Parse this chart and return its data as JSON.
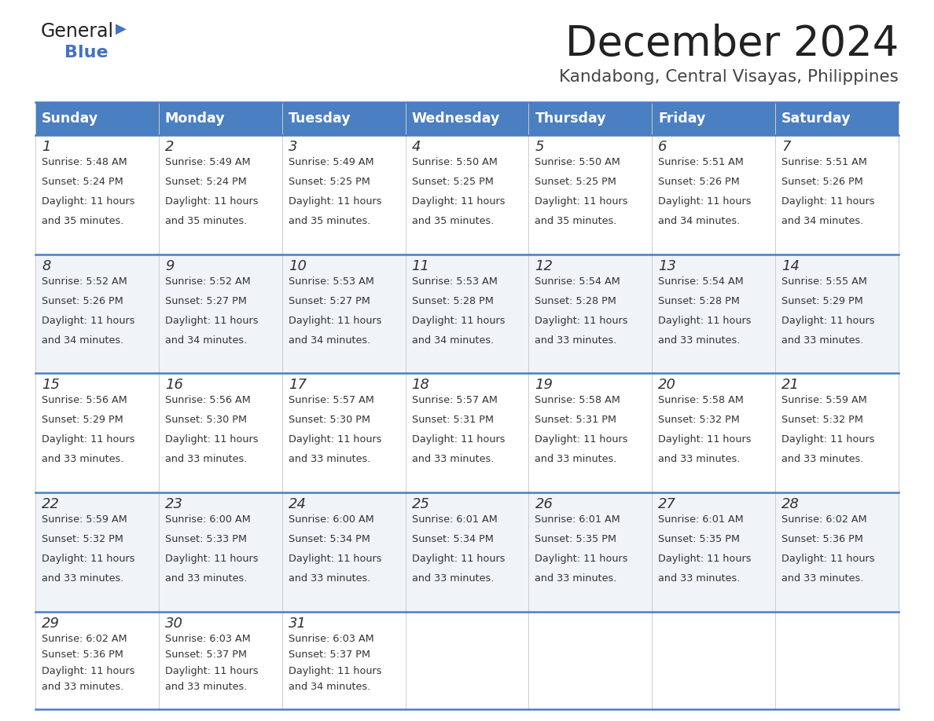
{
  "title": "December 2024",
  "subtitle": "Kandabong, Central Visayas, Philippines",
  "days_of_week": [
    "Sunday",
    "Monday",
    "Tuesday",
    "Wednesday",
    "Thursday",
    "Friday",
    "Saturday"
  ],
  "header_bg": "#4a7fc1",
  "header_text": "#FFFFFF",
  "cell_bg_odd": "#FFFFFF",
  "cell_bg_even": "#F0F4F8",
  "divider_color": "#4a7fc1",
  "text_color": "#333333",
  "logo_general_color": "#222222",
  "logo_blue_color": "#4472C4",
  "title_color": "#222222",
  "subtitle_color": "#444444",
  "days": [
    {
      "date": 1,
      "col": 0,
      "row": 0,
      "sunrise": "5:48 AM",
      "sunset": "5:24 PM",
      "daylight": "11 hours",
      "daylight2": "and 35 minutes."
    },
    {
      "date": 2,
      "col": 1,
      "row": 0,
      "sunrise": "5:49 AM",
      "sunset": "5:24 PM",
      "daylight": "11 hours",
      "daylight2": "and 35 minutes."
    },
    {
      "date": 3,
      "col": 2,
      "row": 0,
      "sunrise": "5:49 AM",
      "sunset": "5:25 PM",
      "daylight": "11 hours",
      "daylight2": "and 35 minutes."
    },
    {
      "date": 4,
      "col": 3,
      "row": 0,
      "sunrise": "5:50 AM",
      "sunset": "5:25 PM",
      "daylight": "11 hours",
      "daylight2": "and 35 minutes."
    },
    {
      "date": 5,
      "col": 4,
      "row": 0,
      "sunrise": "5:50 AM",
      "sunset": "5:25 PM",
      "daylight": "11 hours",
      "daylight2": "and 35 minutes."
    },
    {
      "date": 6,
      "col": 5,
      "row": 0,
      "sunrise": "5:51 AM",
      "sunset": "5:26 PM",
      "daylight": "11 hours",
      "daylight2": "and 34 minutes."
    },
    {
      "date": 7,
      "col": 6,
      "row": 0,
      "sunrise": "5:51 AM",
      "sunset": "5:26 PM",
      "daylight": "11 hours",
      "daylight2": "and 34 minutes."
    },
    {
      "date": 8,
      "col": 0,
      "row": 1,
      "sunrise": "5:52 AM",
      "sunset": "5:26 PM",
      "daylight": "11 hours",
      "daylight2": "and 34 minutes."
    },
    {
      "date": 9,
      "col": 1,
      "row": 1,
      "sunrise": "5:52 AM",
      "sunset": "5:27 PM",
      "daylight": "11 hours",
      "daylight2": "and 34 minutes."
    },
    {
      "date": 10,
      "col": 2,
      "row": 1,
      "sunrise": "5:53 AM",
      "sunset": "5:27 PM",
      "daylight": "11 hours",
      "daylight2": "and 34 minutes."
    },
    {
      "date": 11,
      "col": 3,
      "row": 1,
      "sunrise": "5:53 AM",
      "sunset": "5:28 PM",
      "daylight": "11 hours",
      "daylight2": "and 34 minutes."
    },
    {
      "date": 12,
      "col": 4,
      "row": 1,
      "sunrise": "5:54 AM",
      "sunset": "5:28 PM",
      "daylight": "11 hours",
      "daylight2": "and 33 minutes."
    },
    {
      "date": 13,
      "col": 5,
      "row": 1,
      "sunrise": "5:54 AM",
      "sunset": "5:28 PM",
      "daylight": "11 hours",
      "daylight2": "and 33 minutes."
    },
    {
      "date": 14,
      "col": 6,
      "row": 1,
      "sunrise": "5:55 AM",
      "sunset": "5:29 PM",
      "daylight": "11 hours",
      "daylight2": "and 33 minutes."
    },
    {
      "date": 15,
      "col": 0,
      "row": 2,
      "sunrise": "5:56 AM",
      "sunset": "5:29 PM",
      "daylight": "11 hours",
      "daylight2": "and 33 minutes."
    },
    {
      "date": 16,
      "col": 1,
      "row": 2,
      "sunrise": "5:56 AM",
      "sunset": "5:30 PM",
      "daylight": "11 hours",
      "daylight2": "and 33 minutes."
    },
    {
      "date": 17,
      "col": 2,
      "row": 2,
      "sunrise": "5:57 AM",
      "sunset": "5:30 PM",
      "daylight": "11 hours",
      "daylight2": "and 33 minutes."
    },
    {
      "date": 18,
      "col": 3,
      "row": 2,
      "sunrise": "5:57 AM",
      "sunset": "5:31 PM",
      "daylight": "11 hours",
      "daylight2": "and 33 minutes."
    },
    {
      "date": 19,
      "col": 4,
      "row": 2,
      "sunrise": "5:58 AM",
      "sunset": "5:31 PM",
      "daylight": "11 hours",
      "daylight2": "and 33 minutes."
    },
    {
      "date": 20,
      "col": 5,
      "row": 2,
      "sunrise": "5:58 AM",
      "sunset": "5:32 PM",
      "daylight": "11 hours",
      "daylight2": "and 33 minutes."
    },
    {
      "date": 21,
      "col": 6,
      "row": 2,
      "sunrise": "5:59 AM",
      "sunset": "5:32 PM",
      "daylight": "11 hours",
      "daylight2": "and 33 minutes."
    },
    {
      "date": 22,
      "col": 0,
      "row": 3,
      "sunrise": "5:59 AM",
      "sunset": "5:32 PM",
      "daylight": "11 hours",
      "daylight2": "and 33 minutes."
    },
    {
      "date": 23,
      "col": 1,
      "row": 3,
      "sunrise": "6:00 AM",
      "sunset": "5:33 PM",
      "daylight": "11 hours",
      "daylight2": "and 33 minutes."
    },
    {
      "date": 24,
      "col": 2,
      "row": 3,
      "sunrise": "6:00 AM",
      "sunset": "5:34 PM",
      "daylight": "11 hours",
      "daylight2": "and 33 minutes."
    },
    {
      "date": 25,
      "col": 3,
      "row": 3,
      "sunrise": "6:01 AM",
      "sunset": "5:34 PM",
      "daylight": "11 hours",
      "daylight2": "and 33 minutes."
    },
    {
      "date": 26,
      "col": 4,
      "row": 3,
      "sunrise": "6:01 AM",
      "sunset": "5:35 PM",
      "daylight": "11 hours",
      "daylight2": "and 33 minutes."
    },
    {
      "date": 27,
      "col": 5,
      "row": 3,
      "sunrise": "6:01 AM",
      "sunset": "5:35 PM",
      "daylight": "11 hours",
      "daylight2": "and 33 minutes."
    },
    {
      "date": 28,
      "col": 6,
      "row": 3,
      "sunrise": "6:02 AM",
      "sunset": "5:36 PM",
      "daylight": "11 hours",
      "daylight2": "and 33 minutes."
    },
    {
      "date": 29,
      "col": 0,
      "row": 4,
      "sunrise": "6:02 AM",
      "sunset": "5:36 PM",
      "daylight": "11 hours",
      "daylight2": "and 33 minutes."
    },
    {
      "date": 30,
      "col": 1,
      "row": 4,
      "sunrise": "6:03 AM",
      "sunset": "5:37 PM",
      "daylight": "11 hours",
      "daylight2": "and 33 minutes."
    },
    {
      "date": 31,
      "col": 2,
      "row": 4,
      "sunrise": "6:03 AM",
      "sunset": "5:37 PM",
      "daylight": "11 hours",
      "daylight2": "and 34 minutes."
    }
  ]
}
